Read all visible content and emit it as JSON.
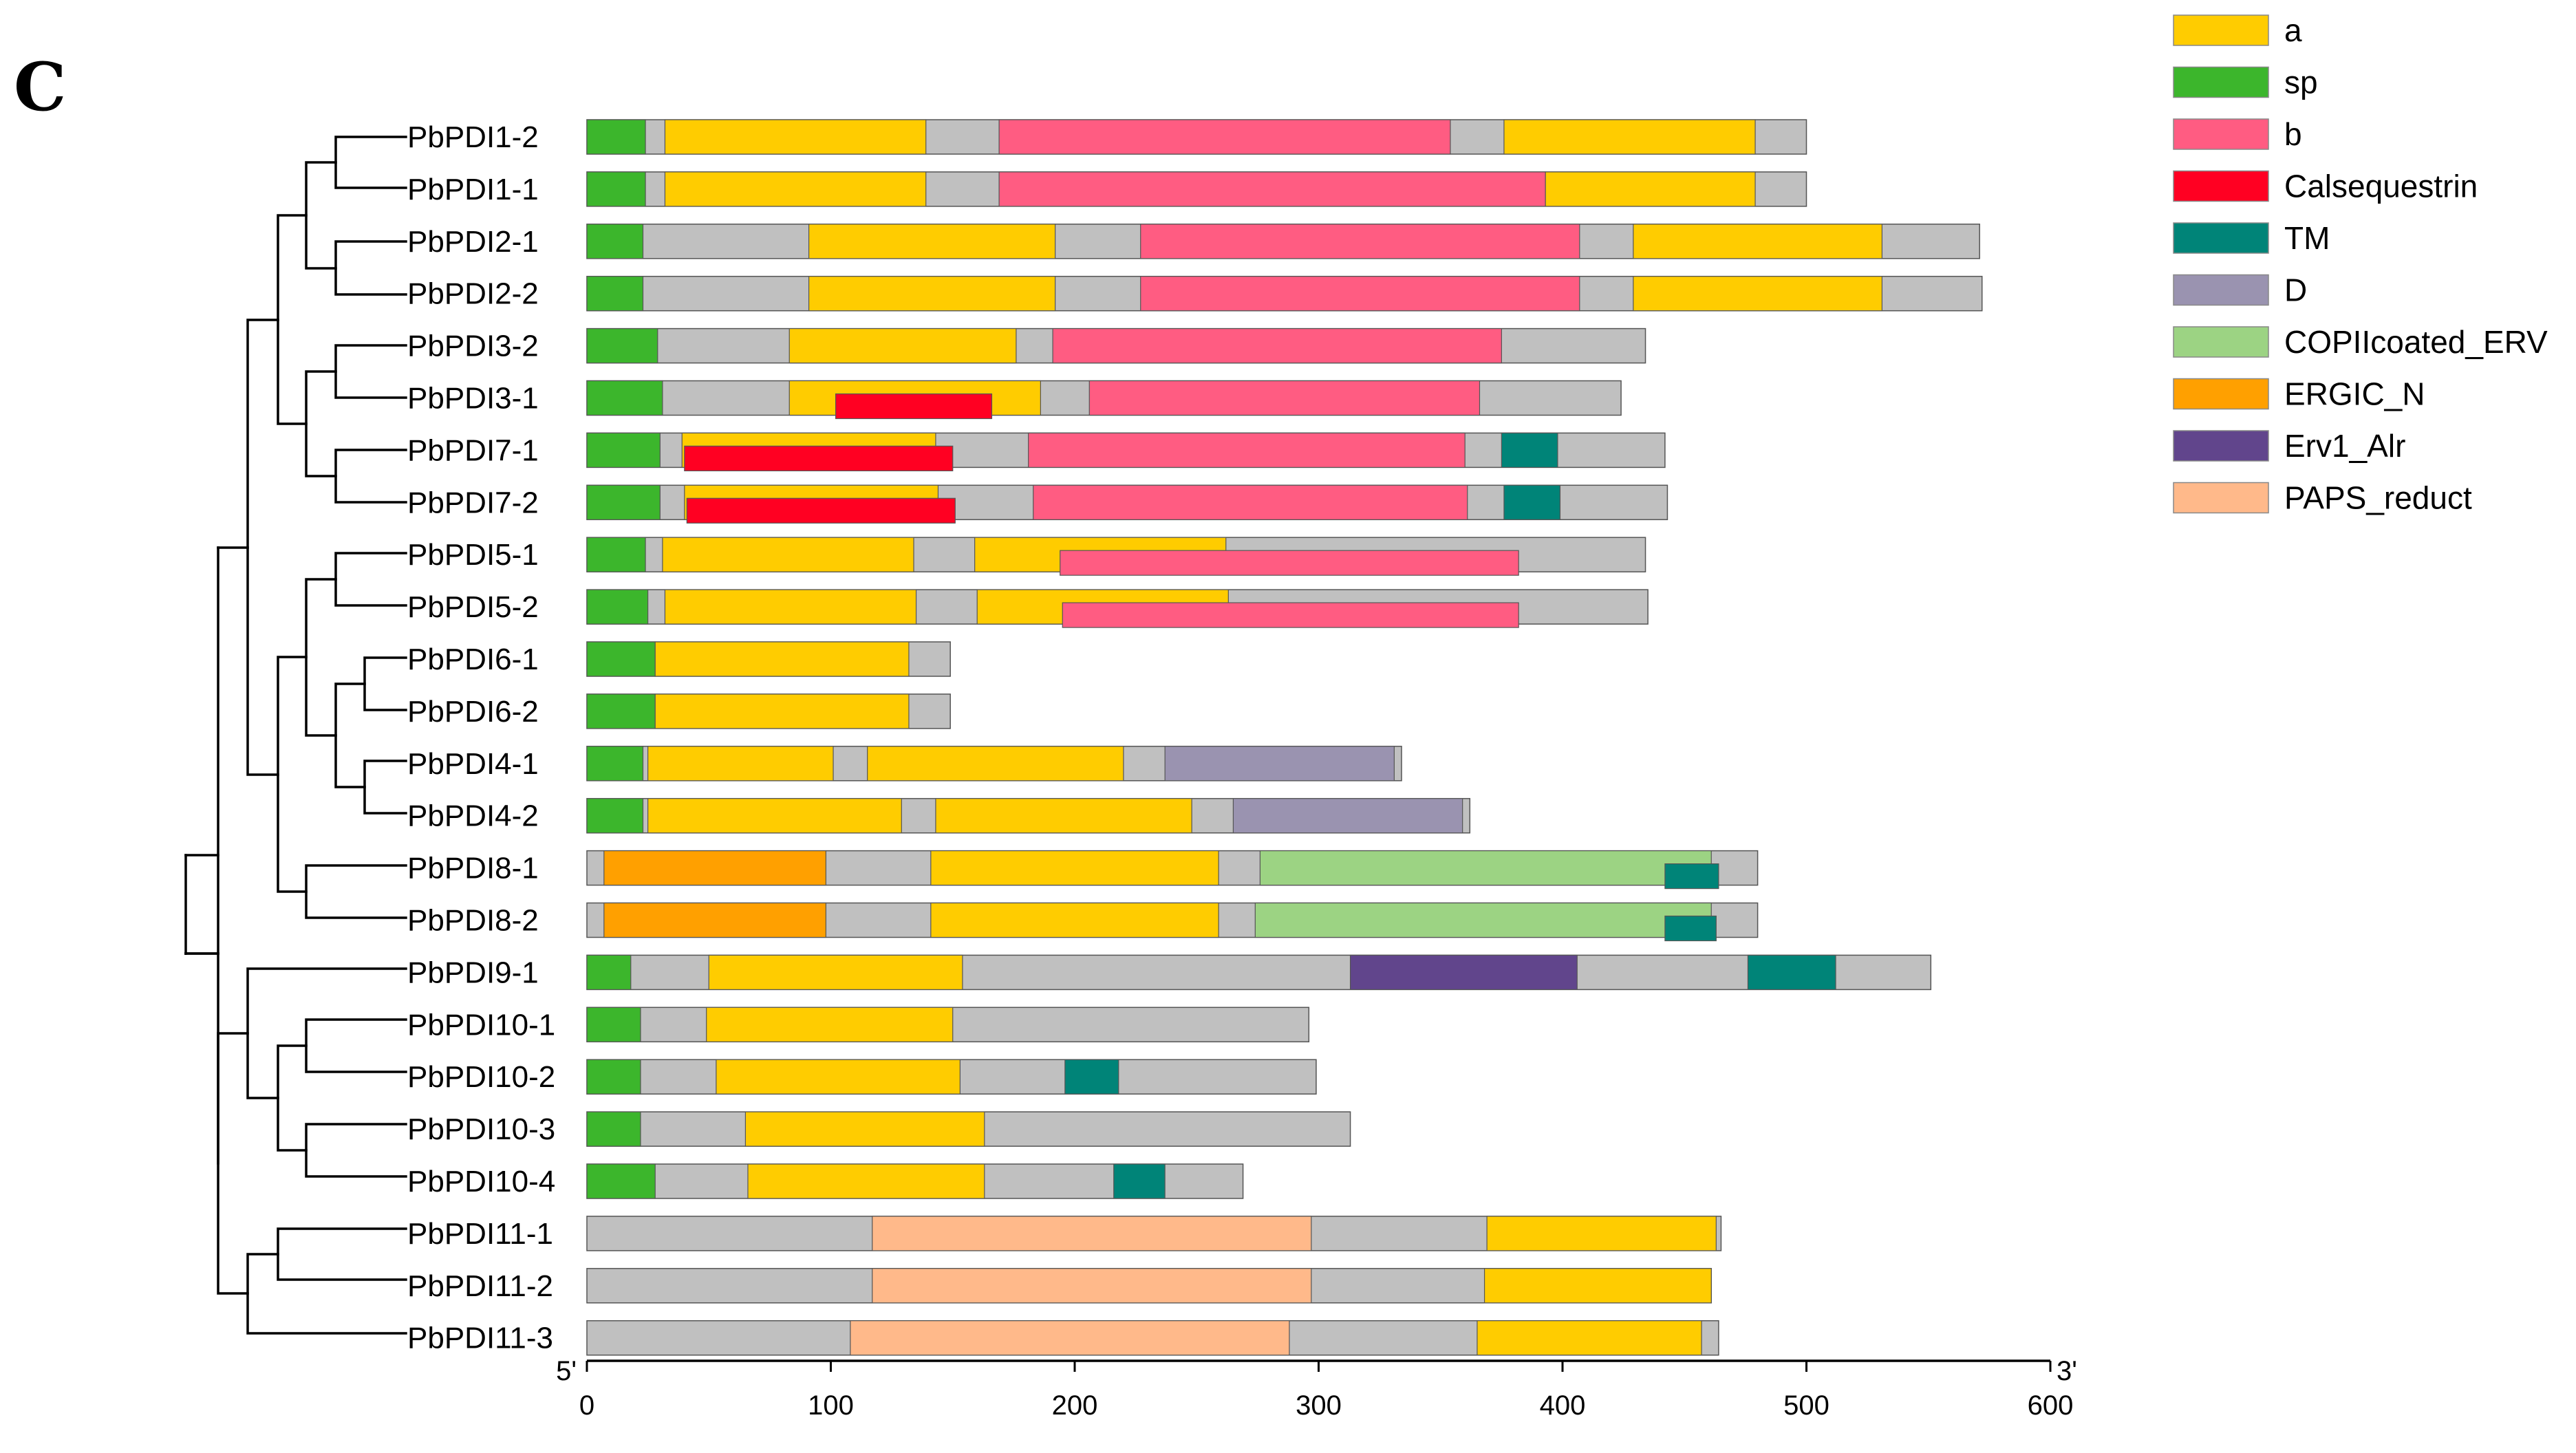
{
  "panel_label": "C",
  "chart_data": {
    "type": "domain-architecture",
    "x_axis": {
      "min": 0,
      "max": 600,
      "ticks": [
        0,
        100,
        200,
        300,
        400,
        500,
        600
      ],
      "start_label": "5'",
      "end_label": "3'"
    },
    "legend": [
      {
        "key": "a",
        "label": "a",
        "color": "#FFCC00"
      },
      {
        "key": "sp",
        "label": "sp",
        "color": "#3CB62C"
      },
      {
        "key": "b",
        "label": "b",
        "color": "#FF5C82"
      },
      {
        "key": "Calsequestrin",
        "label": "Calsequestrin",
        "color": "#FF0022"
      },
      {
        "key": "TM",
        "label": "TM",
        "color": "#008478"
      },
      {
        "key": "D",
        "label": "D",
        "color": "#9A93B0"
      },
      {
        "key": "COPIIcoated_ERV",
        "label": "COPIIcoated_ERV",
        "color": "#9CD383"
      },
      {
        "key": "ERGIC_N",
        "label": "ERGIC_N",
        "color": "#FFA000"
      },
      {
        "key": "Erv1_Alr",
        "label": "Erv1_Alr",
        "color": "#61458C"
      },
      {
        "key": "PAPS_reduct",
        "label": "PAPS_reduct",
        "color": "#FFB98A"
      }
    ],
    "backbone_color": "#C0C0C0",
    "proteins": [
      {
        "name": "PbPDI1-2",
        "length": 500,
        "domains": [
          {
            "type": "sp",
            "start": 0,
            "end": 24
          },
          {
            "type": "a",
            "start": 32,
            "end": 139
          },
          {
            "type": "b",
            "start": 169,
            "end": 354
          },
          {
            "type": "a",
            "start": 376,
            "end": 479
          }
        ]
      },
      {
        "name": "PbPDI1-1",
        "length": 500,
        "domains": [
          {
            "type": "sp",
            "start": 0,
            "end": 24
          },
          {
            "type": "a",
            "start": 32,
            "end": 139
          },
          {
            "type": "b",
            "start": 169,
            "end": 393
          },
          {
            "type": "a",
            "start": 393,
            "end": 479
          }
        ]
      },
      {
        "name": "PbPDI2-1",
        "length": 571,
        "domains": [
          {
            "type": "sp",
            "start": 0,
            "end": 23
          },
          {
            "type": "a",
            "start": 91,
            "end": 192
          },
          {
            "type": "b",
            "start": 227,
            "end": 407
          },
          {
            "type": "a",
            "start": 429,
            "end": 531
          }
        ]
      },
      {
        "name": "PbPDI2-2",
        "length": 572,
        "domains": [
          {
            "type": "sp",
            "start": 0,
            "end": 23
          },
          {
            "type": "a",
            "start": 91,
            "end": 192
          },
          {
            "type": "b",
            "start": 227,
            "end": 407
          },
          {
            "type": "a",
            "start": 429,
            "end": 531
          }
        ]
      },
      {
        "name": "PbPDI3-2",
        "length": 434,
        "domains": [
          {
            "type": "sp",
            "start": 0,
            "end": 29
          },
          {
            "type": "a",
            "start": 83,
            "end": 176
          },
          {
            "type": "b",
            "start": 191,
            "end": 375
          }
        ]
      },
      {
        "name": "PbPDI3-1",
        "length": 424,
        "domains": [
          {
            "type": "sp",
            "start": 0,
            "end": 31
          },
          {
            "type": "a",
            "start": 83,
            "end": 186
          },
          {
            "type": "Calsequestrin",
            "start": 102,
            "end": 166,
            "inset": true
          },
          {
            "type": "b",
            "start": 206,
            "end": 366
          }
        ]
      },
      {
        "name": "PbPDI7-1",
        "length": 442,
        "domains": [
          {
            "type": "sp",
            "start": 0,
            "end": 30
          },
          {
            "type": "a",
            "start": 39,
            "end": 143
          },
          {
            "type": "Calsequestrin",
            "start": 40,
            "end": 150,
            "inset": true
          },
          {
            "type": "b",
            "start": 181,
            "end": 360
          },
          {
            "type": "TM",
            "start": 375,
            "end": 398
          }
        ]
      },
      {
        "name": "PbPDI7-2",
        "length": 443,
        "domains": [
          {
            "type": "sp",
            "start": 0,
            "end": 30
          },
          {
            "type": "a",
            "start": 40,
            "end": 144
          },
          {
            "type": "Calsequestrin",
            "start": 41,
            "end": 151,
            "inset": true
          },
          {
            "type": "b",
            "start": 183,
            "end": 361
          },
          {
            "type": "TM",
            "start": 376,
            "end": 399
          }
        ]
      },
      {
        "name": "PbPDI5-1",
        "length": 434,
        "domains": [
          {
            "type": "sp",
            "start": 0,
            "end": 24
          },
          {
            "type": "a",
            "start": 31,
            "end": 134
          },
          {
            "type": "a",
            "start": 159,
            "end": 262
          },
          {
            "type": "b",
            "start": 194,
            "end": 382,
            "inset": true
          }
        ]
      },
      {
        "name": "PbPDI5-2",
        "length": 435,
        "domains": [
          {
            "type": "sp",
            "start": 0,
            "end": 25
          },
          {
            "type": "a",
            "start": 32,
            "end": 135
          },
          {
            "type": "a",
            "start": 160,
            "end": 263
          },
          {
            "type": "b",
            "start": 195,
            "end": 382,
            "inset": true
          }
        ]
      },
      {
        "name": "PbPDI6-1",
        "length": 149,
        "domains": [
          {
            "type": "sp",
            "start": 0,
            "end": 28
          },
          {
            "type": "a",
            "start": 28,
            "end": 132
          }
        ]
      },
      {
        "name": "PbPDI6-2",
        "length": 149,
        "domains": [
          {
            "type": "sp",
            "start": 0,
            "end": 28
          },
          {
            "type": "a",
            "start": 28,
            "end": 132
          }
        ]
      },
      {
        "name": "PbPDI4-1",
        "length": 334,
        "domains": [
          {
            "type": "sp",
            "start": 0,
            "end": 23
          },
          {
            "type": "a",
            "start": 25,
            "end": 101
          },
          {
            "type": "a",
            "start": 115,
            "end": 220
          },
          {
            "type": "D",
            "start": 237,
            "end": 331
          }
        ]
      },
      {
        "name": "PbPDI4-2",
        "length": 362,
        "domains": [
          {
            "type": "sp",
            "start": 0,
            "end": 23
          },
          {
            "type": "a",
            "start": 25,
            "end": 129
          },
          {
            "type": "a",
            "start": 143,
            "end": 248
          },
          {
            "type": "D",
            "start": 265,
            "end": 359
          }
        ]
      },
      {
        "name": "PbPDI8-1",
        "length": 480,
        "domains": [
          {
            "type": "ERGIC_N",
            "start": 7,
            "end": 98
          },
          {
            "type": "a",
            "start": 141,
            "end": 259
          },
          {
            "type": "COPIIcoated_ERV",
            "start": 276,
            "end": 461
          },
          {
            "type": "TM",
            "start": 442,
            "end": 464,
            "inset": true
          }
        ]
      },
      {
        "name": "PbPDI8-2",
        "length": 480,
        "domains": [
          {
            "type": "ERGIC_N",
            "start": 7,
            "end": 98
          },
          {
            "type": "a",
            "start": 141,
            "end": 259
          },
          {
            "type": "COPIIcoated_ERV",
            "start": 274,
            "end": 461
          },
          {
            "type": "TM",
            "start": 442,
            "end": 463,
            "inset": true
          }
        ]
      },
      {
        "name": "PbPDI9-1",
        "length": 551,
        "domains": [
          {
            "type": "sp",
            "start": 0,
            "end": 18
          },
          {
            "type": "a",
            "start": 50,
            "end": 154
          },
          {
            "type": "Erv1_Alr",
            "start": 313,
            "end": 406
          },
          {
            "type": "TM",
            "start": 476,
            "end": 512
          }
        ]
      },
      {
        "name": "PbPDI10-1",
        "length": 296,
        "domains": [
          {
            "type": "sp",
            "start": 0,
            "end": 22
          },
          {
            "type": "a",
            "start": 49,
            "end": 150
          }
        ]
      },
      {
        "name": "PbPDI10-2",
        "length": 299,
        "domains": [
          {
            "type": "sp",
            "start": 0,
            "end": 22
          },
          {
            "type": "a",
            "start": 53,
            "end": 153
          },
          {
            "type": "TM",
            "start": 196,
            "end": 218
          }
        ]
      },
      {
        "name": "PbPDI10-3",
        "length": 313,
        "domains": [
          {
            "type": "sp",
            "start": 0,
            "end": 22
          },
          {
            "type": "a",
            "start": 65,
            "end": 163
          }
        ]
      },
      {
        "name": "PbPDI10-4",
        "length": 269,
        "domains": [
          {
            "type": "sp",
            "start": 0,
            "end": 28
          },
          {
            "type": "a",
            "start": 66,
            "end": 163
          },
          {
            "type": "TM",
            "start": 216,
            "end": 237
          }
        ]
      },
      {
        "name": "PbPDI11-1",
        "length": 465,
        "domains": [
          {
            "type": "PAPS_reduct",
            "start": 117,
            "end": 297
          },
          {
            "type": "a",
            "start": 369,
            "end": 463
          }
        ]
      },
      {
        "name": "PbPDI11-2",
        "length": 461,
        "domains": [
          {
            "type": "PAPS_reduct",
            "start": 117,
            "end": 297
          },
          {
            "type": "a",
            "start": 368,
            "end": 461
          }
        ]
      },
      {
        "name": "PbPDI11-3",
        "length": 464,
        "domains": [
          {
            "type": "PAPS_reduct",
            "start": 108,
            "end": 288
          },
          {
            "type": "a",
            "start": 365,
            "end": 457
          }
        ]
      }
    ]
  }
}
